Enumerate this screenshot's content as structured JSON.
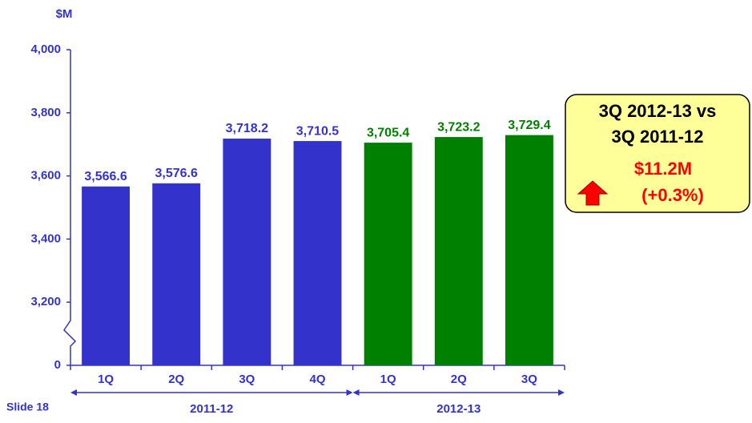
{
  "chart_data": {
    "type": "bar",
    "y_label": "$M",
    "categories": [
      "1Q",
      "2Q",
      "3Q",
      "4Q",
      "1Q",
      "2Q",
      "3Q"
    ],
    "series": [
      {
        "name": "2011-12",
        "color": "#3333cc",
        "values": [
          3566.6,
          3576.6,
          3718.2,
          3710.5,
          null,
          null,
          null
        ],
        "value_labels": [
          "3,566.6",
          "3,576.6",
          "3,718.2",
          "3,710.5",
          null,
          null,
          null
        ]
      },
      {
        "name": "2012-13",
        "color": "#008000",
        "values": [
          null,
          null,
          null,
          null,
          3705.4,
          3723.2,
          3729.4
        ],
        "value_labels": [
          null,
          null,
          null,
          null,
          "3,705.4",
          "3,723.2",
          "3,729.4"
        ]
      }
    ],
    "ylim": [
      0,
      4000
    ],
    "ybreak": [
      0,
      3000
    ],
    "yticks": [
      0,
      {
        "value": 3200,
        "label": "3,200"
      },
      {
        "value": 3400,
        "label": "3,400"
      },
      {
        "value": 3600,
        "label": "3,600"
      },
      {
        "value": 3800,
        "label": "3,800"
      },
      {
        "value": 4000,
        "label": "4,000"
      }
    ],
    "callout": [
      "3Q 2012-13 vs",
      "3Q 2011-12",
      "$11.2M",
      "(+0.3%)"
    ],
    "footer": "Slide 18"
  }
}
